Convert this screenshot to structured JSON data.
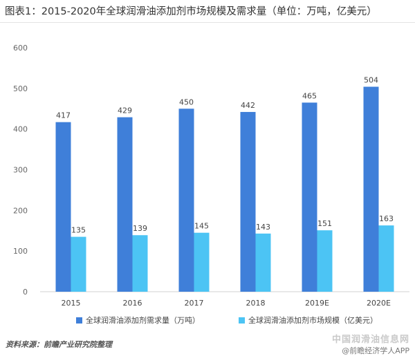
{
  "title": "图表1：2015-2020年全球润滑油添加剂市场规模及需求量（单位：万吨，亿美元）",
  "source": "资料来源：前瞻产业研究院整理",
  "footer": {
    "watermark_site": "中国润滑油信息网",
    "app_label": "@前瞻经济学人APP"
  },
  "colors": {
    "series_1": "#3f7fd9",
    "series_2": "#4cc4f4",
    "axis_text": "#666666"
  },
  "chart_data": {
    "type": "bar",
    "title": "2015-2020年全球润滑油添加剂市场规模及需求量（单位：万吨，亿美元）",
    "categories": [
      "2015",
      "2016",
      "2017",
      "2018",
      "2019E",
      "2020E"
    ],
    "series": [
      {
        "name": "全球润滑油添加剂需求量（万吨）",
        "values": [
          417,
          429,
          450,
          442,
          465,
          504
        ]
      },
      {
        "name": "全球润滑油添加剂市场规模（亿美元）",
        "values": [
          135,
          139,
          145,
          143,
          151,
          163
        ]
      }
    ],
    "ylim": [
      0,
      600
    ],
    "yticks": [
      0,
      100,
      200,
      300,
      400,
      500,
      600
    ],
    "grid": false,
    "legend": "bottom",
    "data_labels": true
  }
}
